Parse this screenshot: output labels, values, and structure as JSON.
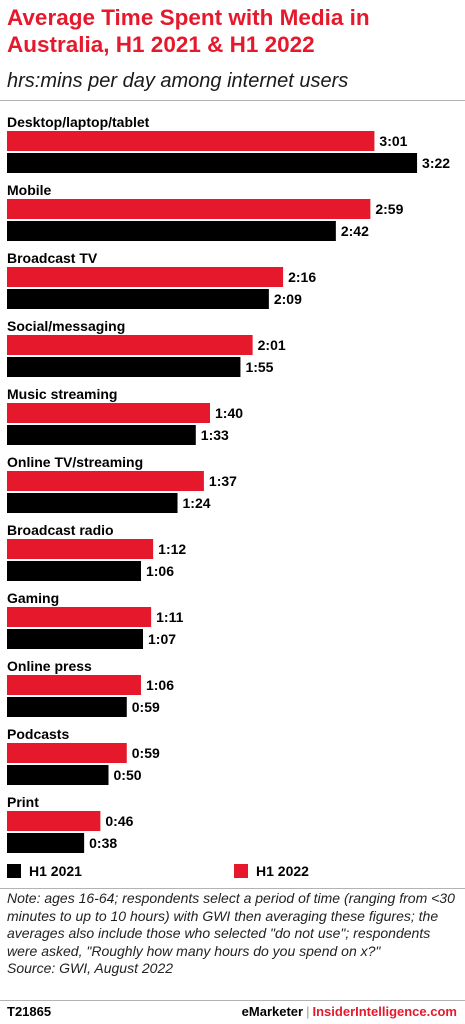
{
  "header": {
    "title": "Average Time Spent with Media in Australia, H1 2021 & H1 2022",
    "subtitle": "hrs:mins per day among internet users"
  },
  "colors": {
    "accent": "#e5192b",
    "h1_2022": "#e5192b",
    "h1_2021": "#000000"
  },
  "chart_data": {
    "type": "bar",
    "orientation": "horizontal",
    "title": "Average Time Spent with Media in Australia, H1 2021 & H1 2022",
    "subtitle": "hrs:mins per day among internet users",
    "categories": [
      "Desktop/laptop/tablet",
      "Mobile",
      "Broadcast TV",
      "Social/messaging",
      "Music streaming",
      "Online TV/streaming",
      "Broadcast radio",
      "Gaming",
      "Online press",
      "Podcasts",
      "Print"
    ],
    "series": [
      {
        "name": "H1 2022",
        "color": "#e5192b",
        "values_minutes": [
          181,
          179,
          136,
          121,
          100,
          97,
          72,
          71,
          66,
          59,
          46
        ],
        "labels": [
          "3:01",
          "2:59",
          "2:16",
          "2:01",
          "1:40",
          "1:37",
          "1:12",
          "1:11",
          "1:06",
          "0:59",
          "0:46"
        ]
      },
      {
        "name": "H1 2021",
        "color": "#000000",
        "values_minutes": [
          202,
          162,
          129,
          115,
          93,
          84,
          66,
          67,
          59,
          50,
          38
        ],
        "labels": [
          "3:22",
          "2:42",
          "2:09",
          "1:55",
          "1:33",
          "1:24",
          "1:06",
          "1:07",
          "0:59",
          "0:50",
          "0:38"
        ]
      }
    ],
    "legend": {
      "placement": "bottom-left",
      "order": [
        "H1 2021",
        "H1 2022"
      ]
    },
    "grid": false
  },
  "note": {
    "text": "Note: ages 16-64; respondents select a period of time (ranging from <30 minutes to up to 10 hours) with GWI then averaging these figures; the averages also include those who selected \"do not use\"; respondents were asked, \"Roughly how many hours do you spend on x?\"",
    "source": "Source:  GWI, August 2022"
  },
  "footer": {
    "chart_id": "T21865",
    "brand_primary": "eMarketer",
    "brand_separator": "|",
    "brand_secondary": "InsiderIntelligence.com"
  }
}
